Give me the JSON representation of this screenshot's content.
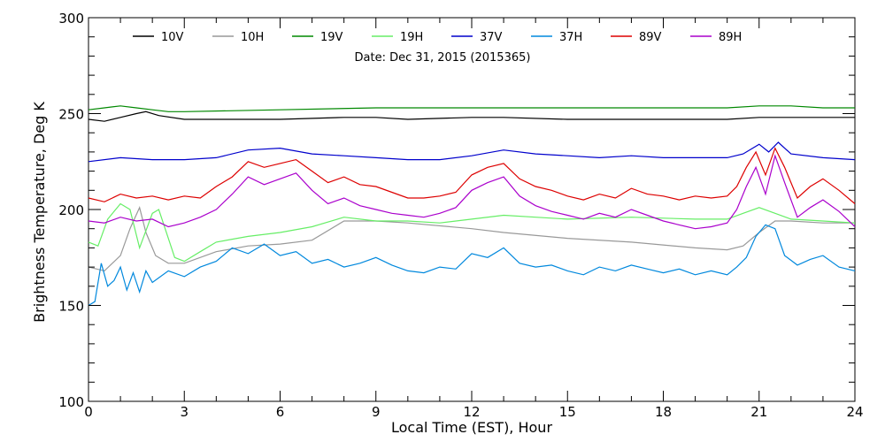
{
  "chart_data": {
    "type": "line",
    "subtitle": "Date: Dec 31, 2015 (2015365)",
    "xlabel": "Local Time (EST), Hour",
    "ylabel": "Brightness Temperature, Deg K",
    "xlim": [
      0,
      24
    ],
    "ylim": [
      100,
      300
    ],
    "xticks": [
      0,
      3,
      6,
      9,
      12,
      15,
      18,
      21,
      24
    ],
    "yticks": [
      100,
      150,
      200,
      250,
      300
    ],
    "legend_position": "top",
    "grid": false,
    "series": [
      {
        "name": "10V",
        "color": "#000000",
        "x": [
          0,
          0.5,
          1,
          1.5,
          1.8,
          2.2,
          3,
          4,
          6,
          8,
          9,
          10,
          12,
          13,
          15,
          17,
          19,
          20,
          21,
          22,
          23,
          24
        ],
        "y": [
          247,
          246,
          248,
          250,
          251,
          249,
          247,
          247,
          247,
          248,
          248,
          247,
          248,
          248,
          247,
          247,
          247,
          247,
          248,
          248,
          248,
          248
        ]
      },
      {
        "name": "10H",
        "color": "#999999",
        "x": [
          0,
          0.5,
          1,
          1.3,
          1.6,
          1.8,
          2.1,
          2.5,
          3,
          4,
          5,
          6,
          7,
          8,
          9,
          10,
          12,
          13,
          15,
          17,
          19,
          20,
          20.5,
          21,
          21.5,
          22,
          23,
          24
        ],
        "y": [
          170,
          168,
          176,
          190,
          201,
          188,
          176,
          172,
          172,
          178,
          181,
          182,
          184,
          194,
          194,
          193,
          190,
          188,
          185,
          183,
          180,
          179,
          181,
          188,
          194,
          194,
          193,
          193
        ]
      },
      {
        "name": "19V",
        "color": "#008800",
        "x": [
          0,
          0.5,
          1,
          1.5,
          2,
          2.5,
          3,
          6,
          9,
          12,
          15,
          18,
          20,
          21,
          22,
          23,
          24
        ],
        "y": [
          252,
          253,
          254,
          253,
          252,
          251,
          251,
          252,
          253,
          253,
          253,
          253,
          253,
          254,
          254,
          253,
          253
        ]
      },
      {
        "name": "19H",
        "color": "#66ee66",
        "x": [
          0,
          0.3,
          0.6,
          1,
          1.3,
          1.6,
          2,
          2.2,
          2.4,
          2.7,
          3,
          3.5,
          4,
          5,
          6,
          7,
          8,
          9,
          10,
          11,
          12,
          13,
          14,
          15,
          17,
          19,
          20,
          20.5,
          21,
          21.5,
          22,
          23,
          24
        ],
        "y": [
          183,
          181,
          195,
          203,
          200,
          180,
          198,
          200,
          190,
          175,
          173,
          178,
          183,
          186,
          188,
          191,
          196,
          194,
          194,
          193,
          195,
          197,
          196,
          195,
          196,
          195,
          195,
          198,
          201,
          198,
          195,
          194,
          193
        ]
      },
      {
        "name": "37V",
        "color": "#0000cc",
        "x": [
          0,
          1,
          2,
          3,
          4,
          5,
          6,
          7,
          8,
          9,
          10,
          11,
          12,
          13,
          14,
          15,
          16,
          17,
          18,
          19,
          20,
          20.5,
          21,
          21.3,
          21.6,
          22,
          23,
          24
        ],
        "y": [
          225,
          227,
          226,
          226,
          227,
          231,
          232,
          229,
          228,
          227,
          226,
          226,
          228,
          231,
          229,
          228,
          227,
          228,
          227,
          227,
          227,
          229,
          234,
          230,
          235,
          229,
          227,
          226
        ]
      },
      {
        "name": "37H",
        "color": "#0088dd",
        "x": [
          0,
          0.2,
          0.4,
          0.6,
          0.8,
          1,
          1.2,
          1.4,
          1.6,
          1.8,
          2,
          2.5,
          3,
          3.5,
          4,
          4.5,
          5,
          5.5,
          6,
          6.5,
          7,
          7.5,
          8,
          8.5,
          9,
          9.5,
          10,
          10.5,
          11,
          11.5,
          12,
          12.5,
          13,
          13.5,
          14,
          14.5,
          15,
          15.5,
          16,
          16.5,
          17,
          17.5,
          18,
          18.5,
          19,
          19.5,
          20,
          20.3,
          20.6,
          20.9,
          21.2,
          21.5,
          21.8,
          22.2,
          22.6,
          23,
          23.5,
          24
        ],
        "y": [
          150,
          152,
          172,
          160,
          163,
          170,
          158,
          167,
          157,
          168,
          162,
          168,
          165,
          170,
          173,
          180,
          177,
          182,
          176,
          178,
          172,
          174,
          170,
          172,
          175,
          171,
          168,
          167,
          170,
          169,
          177,
          175,
          180,
          172,
          170,
          171,
          168,
          166,
          170,
          168,
          171,
          169,
          167,
          169,
          166,
          168,
          166,
          170,
          175,
          186,
          192,
          190,
          176,
          171,
          174,
          176,
          170,
          168
        ]
      },
      {
        "name": "89V",
        "color": "#dd0000",
        "x": [
          0,
          0.5,
          1,
          1.5,
          2,
          2.5,
          3,
          3.5,
          4,
          4.5,
          5,
          5.5,
          6,
          6.5,
          7,
          7.5,
          8,
          8.5,
          9,
          9.5,
          10,
          10.5,
          11,
          11.5,
          12,
          12.5,
          13,
          13.5,
          14,
          14.5,
          15,
          15.5,
          16,
          16.5,
          17,
          17.5,
          18,
          18.5,
          19,
          19.5,
          20,
          20.3,
          20.6,
          20.9,
          21.2,
          21.5,
          21.8,
          22.2,
          22.6,
          23,
          23.5,
          24
        ],
        "y": [
          206,
          204,
          208,
          206,
          207,
          205,
          207,
          206,
          212,
          217,
          225,
          222,
          224,
          226,
          220,
          214,
          217,
          213,
          212,
          209,
          206,
          206,
          207,
          209,
          218,
          222,
          224,
          216,
          212,
          210,
          207,
          205,
          208,
          206,
          211,
          208,
          207,
          205,
          207,
          206,
          207,
          212,
          222,
          230,
          218,
          232,
          222,
          206,
          212,
          216,
          210,
          203
        ]
      },
      {
        "name": "89H",
        "color": "#aa00cc",
        "x": [
          0,
          0.5,
          1,
          1.5,
          2,
          2.5,
          3,
          3.5,
          4,
          4.5,
          5,
          5.5,
          6,
          6.5,
          7,
          7.5,
          8,
          8.5,
          9,
          9.5,
          10,
          10.5,
          11,
          11.5,
          12,
          12.5,
          13,
          13.5,
          14,
          14.5,
          15,
          15.5,
          16,
          16.5,
          17,
          17.5,
          18,
          18.5,
          19,
          19.5,
          20,
          20.3,
          20.6,
          20.9,
          21.2,
          21.5,
          21.8,
          22.2,
          22.6,
          23,
          23.5,
          24
        ],
        "y": [
          194,
          193,
          196,
          194,
          195,
          191,
          193,
          196,
          200,
          208,
          217,
          213,
          216,
          219,
          210,
          203,
          206,
          202,
          200,
          198,
          197,
          196,
          198,
          201,
          210,
          214,
          217,
          207,
          202,
          199,
          197,
          195,
          198,
          196,
          200,
          197,
          194,
          192,
          190,
          191,
          193,
          200,
          212,
          222,
          208,
          228,
          214,
          196,
          201,
          205,
          199,
          191
        ]
      }
    ]
  }
}
